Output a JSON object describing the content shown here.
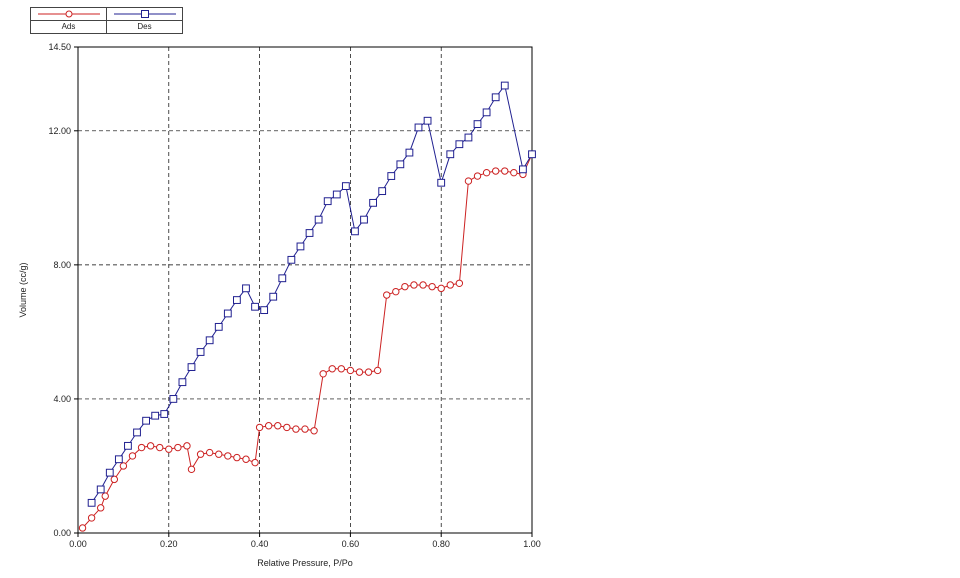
{
  "chart_data": {
    "type": "line",
    "title": "",
    "xlabel": "Relative Pressure, P/Po",
    "ylabel": "Volume (cc/g)",
    "xlim": [
      0,
      1.0
    ],
    "ylim": [
      0,
      14.5
    ],
    "grid": "dashed",
    "legend_position": "top-left",
    "x_grid": [
      0.2,
      0.4,
      0.6,
      0.8
    ],
    "y_grid": [
      4,
      8,
      12
    ],
    "x_ticks": [
      {
        "v": 0.0,
        "label": "0.00"
      },
      {
        "v": 0.2,
        "label": "0.20"
      },
      {
        "v": 0.4,
        "label": "0.40"
      },
      {
        "v": 0.6,
        "label": "0.60"
      },
      {
        "v": 0.8,
        "label": "0.80"
      },
      {
        "v": 1.0,
        "label": "1.00"
      }
    ],
    "y_ticks": [
      {
        "v": 0.0,
        "label": "0.00"
      },
      {
        "v": 4.0,
        "label": "4.00"
      },
      {
        "v": 8.0,
        "label": "8.00"
      },
      {
        "v": 12.0,
        "label": "12.00"
      },
      {
        "v": 14.5,
        "label": "14.50"
      }
    ],
    "series": [
      {
        "name": "Ads",
        "color": "#cc2222",
        "marker": "circle",
        "points": [
          [
            0.01,
            0.15
          ],
          [
            0.03,
            0.45
          ],
          [
            0.05,
            0.75
          ],
          [
            0.06,
            1.1
          ],
          [
            0.08,
            1.6
          ],
          [
            0.1,
            2.0
          ],
          [
            0.12,
            2.3
          ],
          [
            0.14,
            2.55
          ],
          [
            0.16,
            2.6
          ],
          [
            0.18,
            2.55
          ],
          [
            0.2,
            2.5
          ],
          [
            0.22,
            2.55
          ],
          [
            0.24,
            2.6
          ],
          [
            0.25,
            1.9
          ],
          [
            0.27,
            2.35
          ],
          [
            0.29,
            2.4
          ],
          [
            0.31,
            2.35
          ],
          [
            0.33,
            2.3
          ],
          [
            0.35,
            2.25
          ],
          [
            0.37,
            2.2
          ],
          [
            0.39,
            2.1
          ],
          [
            0.4,
            3.15
          ],
          [
            0.42,
            3.2
          ],
          [
            0.44,
            3.2
          ],
          [
            0.46,
            3.15
          ],
          [
            0.48,
            3.1
          ],
          [
            0.5,
            3.1
          ],
          [
            0.52,
            3.05
          ],
          [
            0.54,
            4.75
          ],
          [
            0.56,
            4.9
          ],
          [
            0.58,
            4.9
          ],
          [
            0.6,
            4.85
          ],
          [
            0.62,
            4.8
          ],
          [
            0.64,
            4.8
          ],
          [
            0.66,
            4.85
          ],
          [
            0.68,
            7.1
          ],
          [
            0.7,
            7.2
          ],
          [
            0.72,
            7.35
          ],
          [
            0.74,
            7.4
          ],
          [
            0.76,
            7.4
          ],
          [
            0.78,
            7.35
          ],
          [
            0.8,
            7.3
          ],
          [
            0.82,
            7.4
          ],
          [
            0.84,
            7.45
          ],
          [
            0.86,
            10.5
          ],
          [
            0.88,
            10.65
          ],
          [
            0.9,
            10.75
          ],
          [
            0.92,
            10.8
          ],
          [
            0.94,
            10.8
          ],
          [
            0.96,
            10.75
          ],
          [
            0.98,
            10.7
          ],
          [
            1.0,
            11.3
          ]
        ]
      },
      {
        "name": "Des",
        "color": "#202090",
        "marker": "square",
        "points": [
          [
            0.03,
            0.9
          ],
          [
            0.05,
            1.3
          ],
          [
            0.07,
            1.8
          ],
          [
            0.09,
            2.2
          ],
          [
            0.11,
            2.6
          ],
          [
            0.13,
            3.0
          ],
          [
            0.15,
            3.35
          ],
          [
            0.17,
            3.5
          ],
          [
            0.19,
            3.55
          ],
          [
            0.21,
            4.0
          ],
          [
            0.23,
            4.5
          ],
          [
            0.25,
            4.95
          ],
          [
            0.27,
            5.4
          ],
          [
            0.29,
            5.75
          ],
          [
            0.31,
            6.15
          ],
          [
            0.33,
            6.55
          ],
          [
            0.35,
            6.95
          ],
          [
            0.37,
            7.3
          ],
          [
            0.39,
            6.75
          ],
          [
            0.41,
            6.65
          ],
          [
            0.43,
            7.05
          ],
          [
            0.45,
            7.6
          ],
          [
            0.47,
            8.15
          ],
          [
            0.49,
            8.55
          ],
          [
            0.51,
            8.95
          ],
          [
            0.53,
            9.35
          ],
          [
            0.55,
            9.9
          ],
          [
            0.57,
            10.1
          ],
          [
            0.59,
            10.35
          ],
          [
            0.61,
            9.0
          ],
          [
            0.63,
            9.35
          ],
          [
            0.65,
            9.85
          ],
          [
            0.67,
            10.2
          ],
          [
            0.69,
            10.65
          ],
          [
            0.71,
            11.0
          ],
          [
            0.73,
            11.35
          ],
          [
            0.75,
            12.1
          ],
          [
            0.77,
            12.3
          ],
          [
            0.8,
            10.45
          ],
          [
            0.82,
            11.3
          ],
          [
            0.84,
            11.6
          ],
          [
            0.86,
            11.8
          ],
          [
            0.88,
            12.2
          ],
          [
            0.9,
            12.55
          ],
          [
            0.92,
            13.0
          ],
          [
            0.94,
            13.35
          ],
          [
            0.98,
            10.85
          ],
          [
            1.0,
            11.3
          ]
        ]
      }
    ]
  }
}
